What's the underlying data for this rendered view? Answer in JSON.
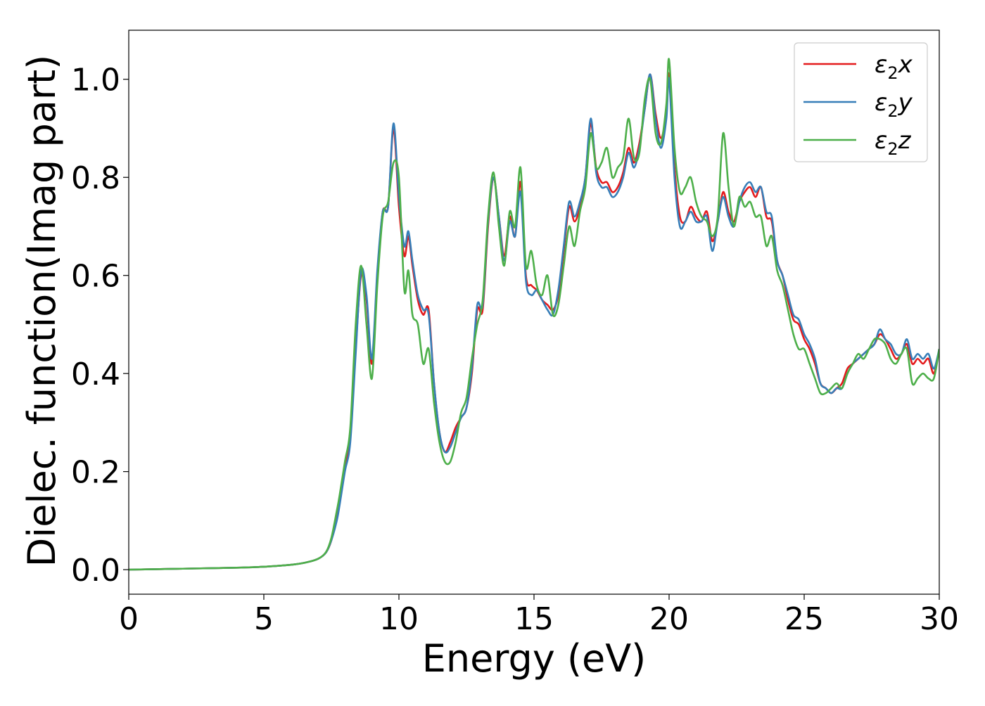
{
  "chart_data": {
    "type": "line",
    "xlabel": "Energy (eV)",
    "ylabel": "Dielec. function(Imag part)",
    "xlim": [
      0,
      30
    ],
    "ylim": [
      -0.05,
      1.1
    ],
    "xticks": [
      0,
      5,
      10,
      15,
      20,
      25,
      30
    ],
    "yticks": [
      0.0,
      0.2,
      0.4,
      0.6,
      0.8,
      1.0
    ],
    "xtick_labels": [
      "0",
      "5",
      "10",
      "15",
      "20",
      "25",
      "30"
    ],
    "ytick_labels": [
      "0.0",
      "0.2",
      "0.4",
      "0.6",
      "0.8",
      "1.0"
    ],
    "grid": false,
    "legend_position": "top-right",
    "series": [
      {
        "name": "ε2x",
        "legend": {
          "base": "ε",
          "sub": "2",
          "var": "x"
        },
        "color": "#e41a1c",
        "x": [
          0,
          1,
          2,
          3,
          4,
          5,
          6,
          6.5,
          7,
          7.3,
          7.5,
          7.7,
          7.8,
          8.0,
          8.2,
          8.4,
          8.6,
          8.8,
          9.0,
          9.2,
          9.4,
          9.6,
          9.8,
          10.0,
          10.2,
          10.35,
          10.5,
          10.7,
          10.9,
          11.1,
          11.3,
          11.5,
          11.7,
          11.9,
          12.1,
          12.3,
          12.5,
          12.7,
          12.9,
          13.1,
          13.3,
          13.5,
          13.7,
          13.9,
          14.1,
          14.3,
          14.5,
          14.7,
          14.9,
          15.1,
          15.3,
          15.5,
          15.7,
          15.9,
          16.1,
          16.3,
          16.5,
          16.7,
          16.9,
          17.1,
          17.3,
          17.5,
          17.7,
          17.9,
          18.1,
          18.3,
          18.5,
          18.7,
          18.9,
          19.1,
          19.3,
          19.5,
          19.7,
          19.9,
          20.0,
          20.2,
          20.4,
          20.6,
          20.8,
          21.0,
          21.2,
          21.4,
          21.6,
          21.8,
          22.0,
          22.2,
          22.4,
          22.6,
          22.8,
          23.0,
          23.2,
          23.4,
          23.6,
          23.8,
          24.0,
          24.2,
          24.4,
          24.6,
          24.8,
          25.0,
          25.2,
          25.4,
          25.6,
          25.8,
          26.0,
          26.2,
          26.4,
          26.6,
          26.8,
          27.0,
          27.2,
          27.4,
          27.6,
          27.8,
          28.0,
          28.2,
          28.4,
          28.6,
          28.8,
          29.0,
          29.2,
          29.4,
          29.6,
          29.8,
          30.0
        ],
        "y": [
          0.0,
          0.001,
          0.002,
          0.003,
          0.004,
          0.006,
          0.01,
          0.014,
          0.022,
          0.035,
          0.06,
          0.11,
          0.14,
          0.21,
          0.27,
          0.45,
          0.6,
          0.55,
          0.42,
          0.6,
          0.73,
          0.74,
          0.9,
          0.74,
          0.64,
          0.68,
          0.62,
          0.55,
          0.52,
          0.53,
          0.38,
          0.28,
          0.24,
          0.26,
          0.29,
          0.31,
          0.33,
          0.4,
          0.53,
          0.53,
          0.7,
          0.8,
          0.72,
          0.64,
          0.72,
          0.68,
          0.79,
          0.6,
          0.58,
          0.57,
          0.55,
          0.54,
          0.53,
          0.56,
          0.65,
          0.74,
          0.71,
          0.74,
          0.8,
          0.91,
          0.82,
          0.79,
          0.79,
          0.77,
          0.78,
          0.81,
          0.86,
          0.83,
          0.87,
          0.94,
          1.01,
          0.93,
          0.88,
          0.93,
          1.01,
          0.82,
          0.72,
          0.71,
          0.74,
          0.72,
          0.71,
          0.73,
          0.67,
          0.71,
          0.77,
          0.73,
          0.71,
          0.75,
          0.77,
          0.78,
          0.76,
          0.78,
          0.72,
          0.71,
          0.63,
          0.6,
          0.55,
          0.51,
          0.5,
          0.47,
          0.45,
          0.42,
          0.38,
          0.37,
          0.36,
          0.37,
          0.38,
          0.41,
          0.42,
          0.43,
          0.44,
          0.45,
          0.46,
          0.48,
          0.47,
          0.45,
          0.43,
          0.44,
          0.46,
          0.42,
          0.43,
          0.42,
          0.43,
          0.4,
          0.45
        ]
      },
      {
        "name": "ε2y",
        "legend": {
          "base": "ε",
          "sub": "2",
          "var": "y"
        },
        "color": "#377eb8",
        "x": [
          0,
          1,
          2,
          3,
          4,
          5,
          6,
          6.5,
          7,
          7.3,
          7.5,
          7.7,
          7.8,
          8.0,
          8.2,
          8.4,
          8.6,
          8.8,
          9.0,
          9.2,
          9.4,
          9.6,
          9.8,
          10.0,
          10.2,
          10.35,
          10.5,
          10.7,
          10.9,
          11.1,
          11.3,
          11.5,
          11.7,
          11.9,
          12.1,
          12.3,
          12.5,
          12.7,
          12.9,
          13.1,
          13.3,
          13.5,
          13.7,
          13.9,
          14.1,
          14.3,
          14.5,
          14.7,
          14.9,
          15.1,
          15.3,
          15.5,
          15.7,
          15.9,
          16.1,
          16.3,
          16.5,
          16.7,
          16.9,
          17.1,
          17.3,
          17.5,
          17.7,
          17.9,
          18.1,
          18.3,
          18.5,
          18.7,
          18.9,
          19.1,
          19.3,
          19.5,
          19.7,
          19.9,
          20.0,
          20.2,
          20.4,
          20.6,
          20.8,
          21.0,
          21.2,
          21.4,
          21.6,
          21.8,
          22.0,
          22.2,
          22.4,
          22.6,
          22.8,
          23.0,
          23.2,
          23.4,
          23.6,
          23.8,
          24.0,
          24.2,
          24.4,
          24.6,
          24.8,
          25.0,
          25.2,
          25.4,
          25.6,
          25.8,
          26.0,
          26.2,
          26.4,
          26.6,
          26.8,
          27.0,
          27.2,
          27.4,
          27.6,
          27.8,
          28.0,
          28.2,
          28.4,
          28.6,
          28.8,
          29.0,
          29.2,
          29.4,
          29.6,
          29.8,
          30.0
        ],
        "y": [
          0.0,
          0.001,
          0.002,
          0.003,
          0.004,
          0.006,
          0.01,
          0.014,
          0.022,
          0.035,
          0.06,
          0.1,
          0.13,
          0.2,
          0.26,
          0.44,
          0.61,
          0.56,
          0.43,
          0.61,
          0.73,
          0.74,
          0.91,
          0.76,
          0.66,
          0.69,
          0.63,
          0.56,
          0.53,
          0.52,
          0.38,
          0.28,
          0.24,
          0.25,
          0.28,
          0.31,
          0.33,
          0.41,
          0.54,
          0.54,
          0.71,
          0.8,
          0.72,
          0.63,
          0.71,
          0.68,
          0.77,
          0.59,
          0.56,
          0.57,
          0.55,
          0.53,
          0.52,
          0.57,
          0.66,
          0.75,
          0.72,
          0.75,
          0.8,
          0.92,
          0.81,
          0.78,
          0.78,
          0.76,
          0.77,
          0.8,
          0.85,
          0.82,
          0.86,
          0.94,
          1.01,
          0.92,
          0.86,
          0.92,
          1.0,
          0.8,
          0.7,
          0.71,
          0.73,
          0.71,
          0.71,
          0.72,
          0.65,
          0.71,
          0.76,
          0.72,
          0.7,
          0.75,
          0.78,
          0.79,
          0.77,
          0.78,
          0.73,
          0.72,
          0.63,
          0.6,
          0.56,
          0.52,
          0.51,
          0.48,
          0.46,
          0.43,
          0.38,
          0.37,
          0.36,
          0.37,
          0.37,
          0.4,
          0.42,
          0.43,
          0.44,
          0.45,
          0.46,
          0.49,
          0.47,
          0.46,
          0.44,
          0.44,
          0.47,
          0.43,
          0.44,
          0.43,
          0.44,
          0.41,
          0.45
        ]
      },
      {
        "name": "ε2z",
        "legend": {
          "base": "ε",
          "sub": "2",
          "var": "z"
        },
        "color": "#4daf4a",
        "x": [
          0,
          1,
          2,
          3,
          4,
          5,
          6,
          6.5,
          7,
          7.3,
          7.5,
          7.7,
          7.8,
          8.0,
          8.2,
          8.4,
          8.6,
          8.8,
          9.0,
          9.2,
          9.4,
          9.6,
          9.8,
          10.0,
          10.2,
          10.35,
          10.5,
          10.7,
          10.9,
          11.1,
          11.3,
          11.5,
          11.7,
          11.9,
          12.1,
          12.3,
          12.5,
          12.7,
          12.9,
          13.1,
          13.3,
          13.5,
          13.7,
          13.9,
          14.1,
          14.3,
          14.5,
          14.7,
          14.9,
          15.1,
          15.3,
          15.5,
          15.7,
          15.9,
          16.1,
          16.3,
          16.5,
          16.7,
          16.9,
          17.1,
          17.3,
          17.5,
          17.7,
          17.9,
          18.1,
          18.3,
          18.5,
          18.7,
          18.9,
          19.1,
          19.3,
          19.5,
          19.7,
          19.9,
          20.0,
          20.2,
          20.4,
          20.6,
          20.8,
          21.0,
          21.2,
          21.4,
          21.6,
          21.8,
          22.0,
          22.2,
          22.4,
          22.6,
          22.8,
          23.0,
          23.2,
          23.4,
          23.6,
          23.8,
          24.0,
          24.2,
          24.4,
          24.6,
          24.8,
          25.0,
          25.2,
          25.4,
          25.6,
          25.8,
          26.0,
          26.2,
          26.4,
          26.6,
          26.8,
          27.0,
          27.2,
          27.4,
          27.6,
          27.8,
          28.0,
          28.2,
          28.4,
          28.6,
          28.8,
          29.0,
          29.2,
          29.4,
          29.6,
          29.8,
          30.0
        ],
        "y": [
          0.0,
          0.001,
          0.002,
          0.003,
          0.004,
          0.006,
          0.01,
          0.014,
          0.022,
          0.036,
          0.065,
          0.12,
          0.15,
          0.22,
          0.29,
          0.5,
          0.62,
          0.5,
          0.39,
          0.58,
          0.72,
          0.75,
          0.83,
          0.8,
          0.57,
          0.61,
          0.52,
          0.5,
          0.42,
          0.45,
          0.34,
          0.26,
          0.22,
          0.22,
          0.26,
          0.32,
          0.35,
          0.43,
          0.5,
          0.55,
          0.72,
          0.81,
          0.7,
          0.62,
          0.73,
          0.7,
          0.82,
          0.62,
          0.65,
          0.58,
          0.56,
          0.6,
          0.52,
          0.54,
          0.62,
          0.7,
          0.66,
          0.73,
          0.78,
          0.89,
          0.82,
          0.83,
          0.86,
          0.8,
          0.82,
          0.84,
          0.92,
          0.84,
          0.85,
          0.96,
          1.0,
          0.89,
          0.87,
          0.95,
          1.04,
          0.86,
          0.77,
          0.78,
          0.8,
          0.75,
          0.72,
          0.71,
          0.68,
          0.72,
          0.89,
          0.78,
          0.7,
          0.76,
          0.74,
          0.75,
          0.72,
          0.72,
          0.66,
          0.68,
          0.61,
          0.58,
          0.53,
          0.48,
          0.45,
          0.45,
          0.42,
          0.39,
          0.36,
          0.36,
          0.37,
          0.38,
          0.37,
          0.4,
          0.42,
          0.44,
          0.43,
          0.45,
          0.47,
          0.47,
          0.46,
          0.43,
          0.42,
          0.44,
          0.45,
          0.38,
          0.39,
          0.4,
          0.39,
          0.39,
          0.45
        ]
      }
    ]
  }
}
